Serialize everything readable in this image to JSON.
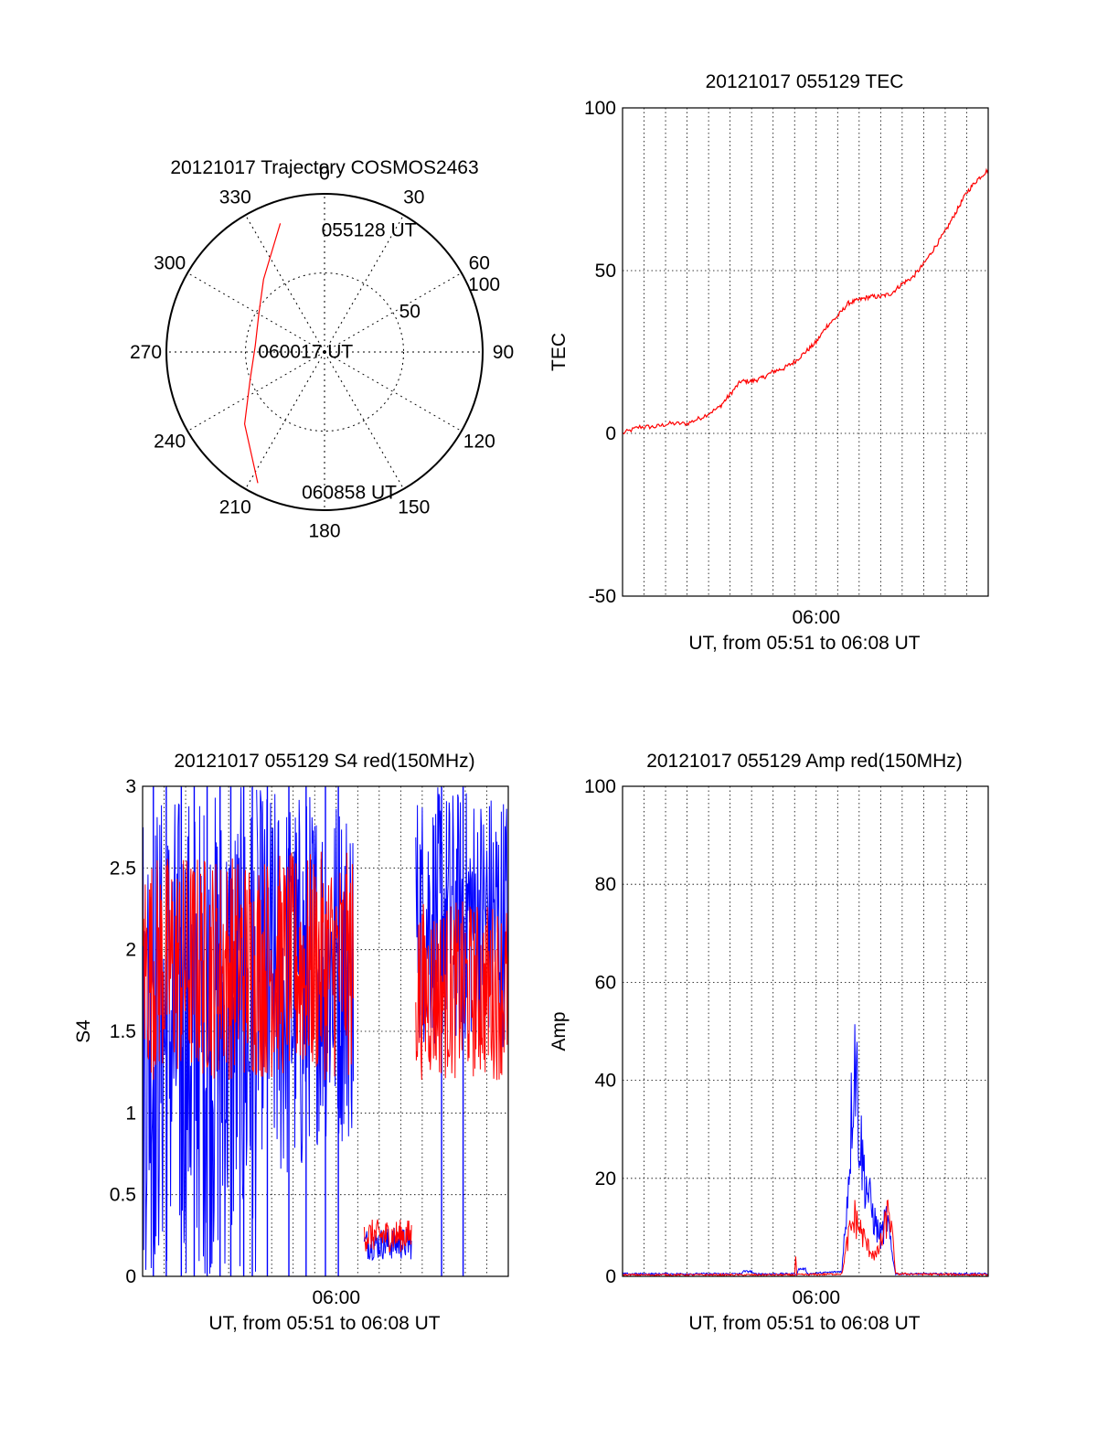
{
  "colors": {
    "red": "#ff0000",
    "blue": "#0000ff",
    "axis": "#000000",
    "background": "#ffffff"
  },
  "chart_data": [
    {
      "id": "trajectory",
      "type": "polar-trajectory",
      "title": "20121017 Trajectory COSMOS2463",
      "angle_labels": [
        "0",
        "30",
        "60",
        "90",
        "120",
        "150",
        "180",
        "210",
        "240",
        "270",
        "300",
        "330"
      ],
      "radius_labels": [
        "50",
        "100"
      ],
      "r_range": [
        0,
        100
      ],
      "grid": true,
      "trajectory": {
        "color": "red",
        "points": [
          {
            "az": 341,
            "r": 86
          },
          {
            "az": 320,
            "r": 60
          },
          {
            "az": 300,
            "r": 48
          },
          {
            "az": 275,
            "r": 44
          },
          {
            "az": 250,
            "r": 50
          },
          {
            "az": 228,
            "r": 68
          },
          {
            "az": 207,
            "r": 93
          }
        ]
      },
      "annotations": [
        {
          "text": "055128 UT",
          "az": 20,
          "r": 82
        },
        {
          "text": "060017 UT",
          "az": 272,
          "r": 12
        },
        {
          "text": "060858 UT",
          "az": 170,
          "r": 90
        }
      ]
    },
    {
      "id": "tec",
      "type": "line",
      "title": "20121017 055129 TEC",
      "xlabel": "UT, from 05:51 to 06:08 UT",
      "ylabel": "TEC",
      "xlim": [
        0,
        17
      ],
      "ylim": [
        -50,
        100
      ],
      "yticks": [
        -50,
        0,
        50,
        100
      ],
      "xticks": [
        {
          "x": 9,
          "label": "06:00"
        }
      ],
      "grid": true,
      "series": [
        {
          "color": "red",
          "x": [
            0,
            0.8,
            1.5,
            2.2,
            3,
            3.7,
            4.5,
            5,
            5.5,
            6,
            6.5,
            7,
            7.5,
            8,
            8.5,
            9,
            9.5,
            10,
            10.5,
            11,
            11.5,
            12,
            12.5,
            13,
            13.5,
            14,
            14.5,
            15,
            15.5,
            16,
            16.5,
            17
          ],
          "y": [
            0,
            2,
            2,
            3,
            3,
            5,
            8,
            12,
            16,
            16,
            17,
            19,
            20,
            22,
            25,
            28,
            33,
            36,
            40,
            41,
            42,
            42,
            43,
            46,
            48,
            52,
            57,
            62,
            68,
            74,
            78,
            81
          ]
        }
      ]
    },
    {
      "id": "s4",
      "type": "line",
      "title": "20121017 055129 S4 red(150MHz)",
      "xlabel": "UT, from 05:51 to 06:08 UT",
      "ylabel": "S4",
      "xlim": [
        0,
        17
      ],
      "ylim": [
        0,
        3
      ],
      "yticks": [
        0,
        0.5,
        1,
        1.5,
        2,
        2.5,
        3
      ],
      "xticks": [
        {
          "x": 9,
          "label": "06:00"
        }
      ],
      "grid": true,
      "series": [
        {
          "color": "blue",
          "segments": [
            {
              "x": [
                0,
                5.3
              ],
              "low": 0,
              "high": 3
            },
            {
              "x": [
                5.3,
                6.0
              ],
              "low": 0.75,
              "high": 3
            },
            {
              "x": [
                6.0,
                7.6
              ],
              "low": 0.5,
              "high": 3
            },
            {
              "x": [
                7.6,
                9.8
              ],
              "low": 0.8,
              "high": 3
            },
            {
              "x": [
                10.3,
                12.5
              ],
              "low": 0.1,
              "high": 0.3
            },
            {
              "x": [
                12.7,
                17
              ],
              "low": 1.4,
              "high": 3
            }
          ],
          "spikes_to_zero_x": [
            0.5,
            1.1,
            1.8,
            2.4,
            3.0,
            3.6,
            4.1,
            4.7,
            5.1,
            5.8,
            6.8,
            7.6,
            8.5,
            9.1,
            13.9,
            14.9
          ]
        },
        {
          "color": "red",
          "segments": [
            {
              "x": [
                0,
                9.8
              ],
              "low": 1.2,
              "high": 2.6
            },
            {
              "x": [
                10.3,
                12.5
              ],
              "low": 0.15,
              "high": 0.35
            },
            {
              "x": [
                12.7,
                17
              ],
              "low": 1.2,
              "high": 2.3
            }
          ]
        }
      ]
    },
    {
      "id": "amp",
      "type": "line",
      "title": "20121017 055129 Amp red(150MHz)",
      "xlabel": "UT, from 05:51 to 06:08 UT",
      "ylabel": "Amp",
      "xlim": [
        0,
        17
      ],
      "ylim": [
        0,
        100
      ],
      "yticks": [
        0,
        20,
        40,
        60,
        80,
        100
      ],
      "xticks": [
        {
          "x": 9,
          "label": "06:00"
        }
      ],
      "grid": true,
      "series": [
        {
          "color": "blue",
          "x": [
            0,
            5.5,
            5.6,
            6.0,
            6.1,
            8.1,
            8.2,
            8.5,
            8.6,
            10.2,
            10.5,
            10.8,
            11.0,
            11.2,
            11.5,
            11.8,
            12.0,
            12.3,
            12.5,
            12.7,
            17
          ],
          "y": [
            0.5,
            0.5,
            1,
            1,
            0.5,
            0.5,
            1.5,
            1.5,
            0.5,
            1,
            20,
            48,
            30,
            22,
            15,
            10,
            8,
            12,
            5,
            0.5,
            0.5
          ]
        },
        {
          "color": "red",
          "x": [
            0,
            8.0,
            8.05,
            8.1,
            10.2,
            10.5,
            10.8,
            11.1,
            11.4,
            11.8,
            12.1,
            12.4,
            12.7,
            17
          ],
          "y": [
            0.3,
            0.3,
            4,
            0.3,
            0.5,
            8,
            12,
            9,
            6,
            4,
            8,
            14,
            0.5,
            0.3
          ]
        }
      ]
    }
  ]
}
